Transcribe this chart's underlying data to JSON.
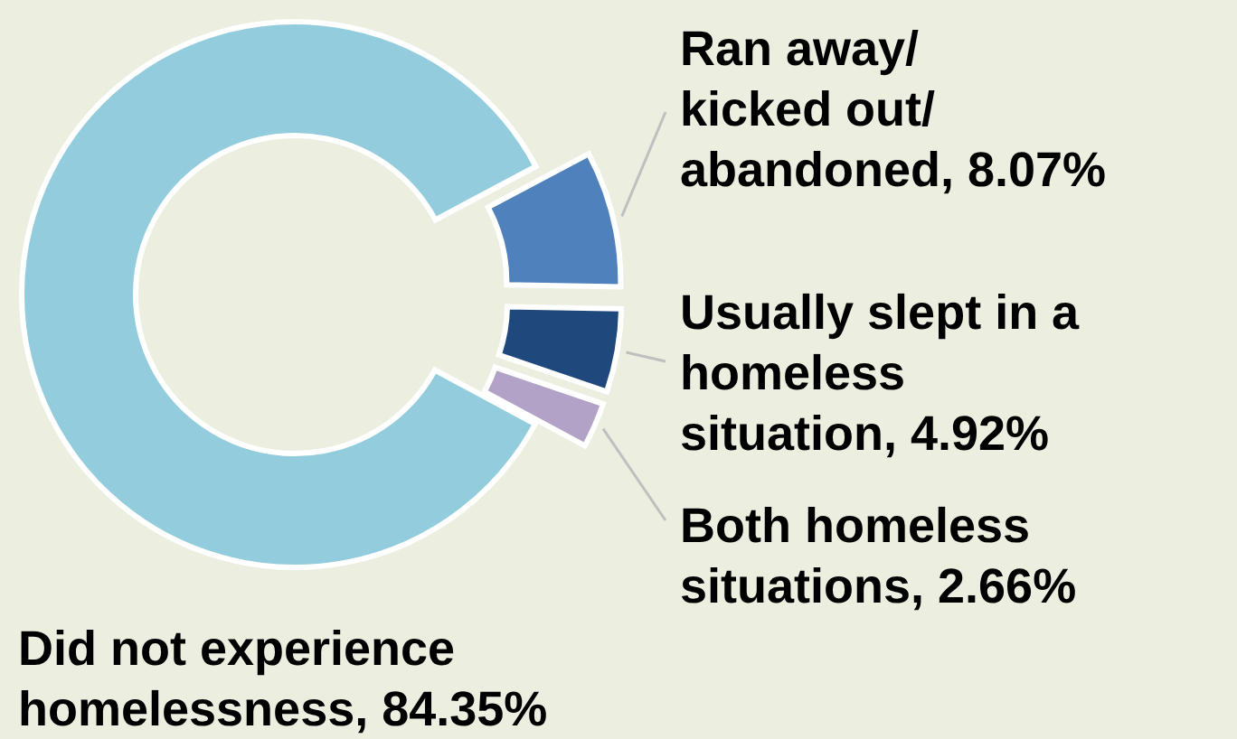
{
  "chart_data": {
    "type": "donut",
    "categories": [
      "Ran away/kicked out/abandoned",
      "Usually slept in a homeless situation",
      "Both homeless situations",
      "Did not experience homelessness"
    ],
    "values": [
      8.07,
      4.92,
      2.66,
      84.35
    ],
    "colors": [
      "#4f81bd",
      "#1f497d",
      "#b2a2c7",
      "#93cddd"
    ],
    "value_labels": [
      "8.07%",
      "4.92%",
      "2.66%",
      "84.35%"
    ]
  }
}
